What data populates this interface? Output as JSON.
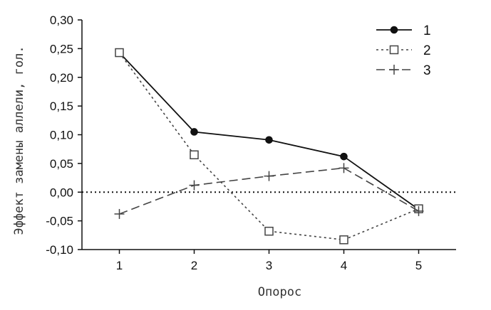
{
  "chart_data": {
    "type": "line",
    "title": "",
    "xlabel": "Опорос",
    "ylabel": "Эффект замены аллели, гол.",
    "categories": [
      "1",
      "2",
      "3",
      "4",
      "5"
    ],
    "x": [
      1,
      2,
      3,
      4,
      5
    ],
    "xlim": [
      0.5,
      5.5
    ],
    "ylim": [
      -0.1,
      0.3
    ],
    "yticks": [
      "-0,10",
      "-0,05",
      "0,00",
      "0,05",
      "0,10",
      "0,15",
      "0,20",
      "0,25",
      "0,30"
    ],
    "reference_line": 0,
    "grid": false,
    "legend_position": "top-right",
    "series": [
      {
        "name": "1",
        "marker": "filled-circle",
        "line": "solid",
        "values": [
          0.243,
          0.105,
          0.091,
          0.062,
          -0.03
        ]
      },
      {
        "name": "2",
        "marker": "open-square",
        "line": "dotted",
        "values": [
          0.243,
          0.065,
          -0.068,
          -0.083,
          -0.029
        ]
      },
      {
        "name": "3",
        "marker": "plus",
        "line": "dashed",
        "values": [
          -0.038,
          0.012,
          0.028,
          0.042,
          -0.033
        ]
      }
    ]
  }
}
